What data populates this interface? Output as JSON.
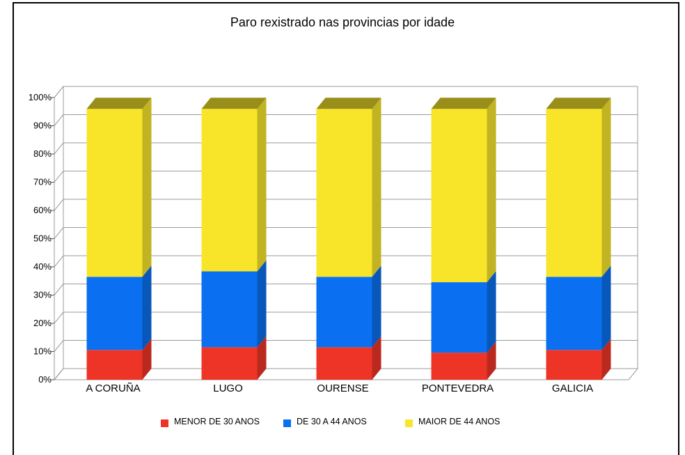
{
  "chart_data": {
    "type": "bar",
    "stacked": true,
    "percent_stacked": true,
    "title": "Paro rexistrado nas provincias por idade",
    "categories": [
      "A CORUÑA",
      "LUGO",
      "OURENSE",
      "PONTEVEDRA",
      "GALICIA"
    ],
    "series": [
      {
        "name": "MENOR DE 30 ANOS",
        "color": "#ee3427",
        "values": [
          11,
          12,
          12,
          10,
          11
        ]
      },
      {
        "name": "DE 30 A 44 ANOS",
        "color": "#0a6ff0",
        "values": [
          27,
          28,
          26,
          26,
          27
        ]
      },
      {
        "name": "MAIOR DE 44 ANOS",
        "color": "#f8e52a",
        "values": [
          62,
          60,
          62,
          64,
          62
        ]
      }
    ],
    "y_ticks": [
      "0%",
      "10%",
      "20%",
      "30%",
      "40%",
      "50%",
      "60%",
      "70%",
      "80%",
      "90%",
      "100%"
    ],
    "ylim": [
      0,
      100
    ],
    "grid": true,
    "legend_position": "bottom",
    "three_d": true
  }
}
